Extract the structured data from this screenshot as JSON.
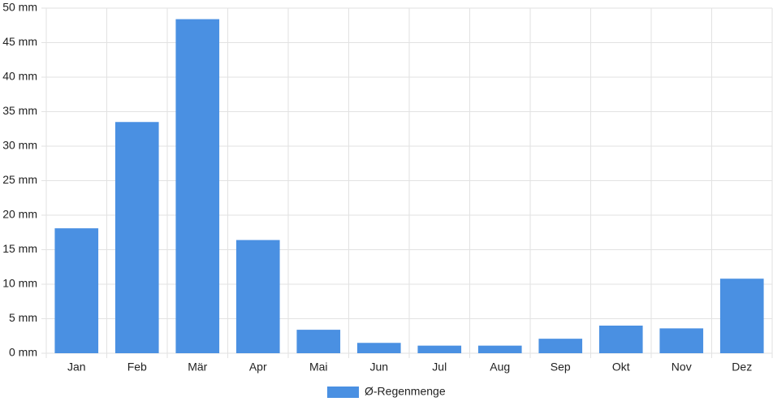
{
  "chart_data": {
    "type": "bar",
    "categories": [
      "Jan",
      "Feb",
      "Mär",
      "Apr",
      "Mai",
      "Jun",
      "Jul",
      "Aug",
      "Sep",
      "Okt",
      "Nov",
      "Dez"
    ],
    "series": [
      {
        "name": "Ø-Regenmenge",
        "color": "#4a90e2",
        "values": [
          18.1,
          33.5,
          48.4,
          16.4,
          3.4,
          1.5,
          1.1,
          1.1,
          2.1,
          4,
          3.6,
          10.8
        ]
      }
    ],
    "ylim": [
      0,
      50
    ],
    "yticks": [
      {
        "value": 0,
        "label": "0 mm"
      },
      {
        "value": 5,
        "label": "5 mm"
      },
      {
        "value": 10,
        "label": "10 mm"
      },
      {
        "value": 15,
        "label": "15 mm"
      },
      {
        "value": 20,
        "label": "20 mm"
      },
      {
        "value": 25,
        "label": "25 mm"
      },
      {
        "value": 30,
        "label": "30 mm"
      },
      {
        "value": 35,
        "label": "35 mm"
      },
      {
        "value": 40,
        "label": "40 mm"
      },
      {
        "value": 45,
        "label": "45 mm"
      },
      {
        "value": 50,
        "label": "50 mm"
      }
    ],
    "grid": true,
    "legend": "bottom"
  }
}
